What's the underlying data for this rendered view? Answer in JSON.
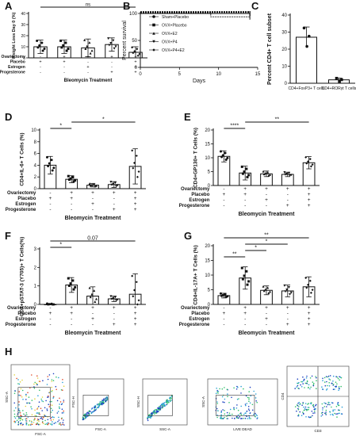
{
  "figure": {
    "panel_letters": [
      "A",
      "B",
      "C",
      "D",
      "E",
      "F",
      "G",
      "H"
    ]
  },
  "chart_data": [
    {
      "panel": "A",
      "type": "bar",
      "ylabel": "Weight Loss Day 0 (%)",
      "ylim": [
        0,
        40
      ],
      "yticks": [
        0,
        10,
        20,
        30,
        40
      ],
      "categories": [
        "1",
        "2",
        "3",
        "4",
        "5"
      ],
      "values": [
        10,
        10,
        9,
        12,
        5
      ],
      "errors": [
        6,
        6,
        8,
        6,
        5
      ],
      "significance": [
        {
          "from": 0,
          "to": 4,
          "label": "ns"
        }
      ],
      "treatment_rows": [
        "Ovariectomy",
        "Placebo",
        "Estrogen",
        "Progesterone"
      ],
      "treatment_matrix": [
        [
          "-",
          "+",
          "+",
          "+",
          "+"
        ],
        [
          "+",
          "+",
          "-",
          "-",
          "+"
        ],
        [
          "-",
          "-",
          "+",
          "-",
          "+"
        ],
        [
          "-",
          "-",
          "-",
          "+",
          "+"
        ]
      ],
      "xlabel": "Bleomycin Treatment"
    },
    {
      "panel": "B",
      "type": "line",
      "xlabel": "Days",
      "ylabel": "Percent survival",
      "xlim": [
        0,
        15
      ],
      "ylim": [
        0,
        100
      ],
      "xticks": [
        0,
        5,
        10,
        15
      ],
      "yticks": [
        0,
        50,
        100
      ],
      "series": [
        {
          "name": "Sham+Placebo",
          "x": [
            0,
            14
          ],
          "y": [
            100,
            100
          ]
        },
        {
          "name": "OVX+Placebo",
          "x": [
            0,
            9,
            9,
            14
          ],
          "y": [
            100,
            100,
            93,
            93
          ]
        },
        {
          "name": "OVX+E2",
          "x": [
            0,
            14
          ],
          "y": [
            100,
            100
          ]
        },
        {
          "name": "OVX+P4",
          "x": [
            0,
            14
          ],
          "y": [
            100,
            100
          ]
        },
        {
          "name": "OVX+P4+E2",
          "x": [
            0,
            14
          ],
          "y": [
            100,
            100
          ]
        }
      ]
    },
    {
      "panel": "C",
      "type": "bar",
      "ylabel": "Percent CD4+ T cell subset",
      "ylim": [
        0,
        40
      ],
      "yticks": [
        0,
        10,
        20,
        30,
        40
      ],
      "categories": [
        "CD4+FoxP3+ T cells",
        "CD4+RORγt T cells"
      ],
      "values": [
        27,
        2
      ],
      "errors": [
        6,
        1
      ]
    },
    {
      "panel": "D",
      "type": "bar",
      "ylabel": "CD4+IL-6+ T Cells (%)",
      "ylim": [
        0,
        10
      ],
      "yticks": [
        0,
        2,
        4,
        6,
        8,
        10
      ],
      "categories": [
        "1",
        "2",
        "3",
        "4",
        "5"
      ],
      "values": [
        4.0,
        1.6,
        0.6,
        0.7,
        3.8
      ],
      "errors": [
        1.5,
        0.6,
        0.3,
        0.5,
        3.0
      ],
      "significance": [
        {
          "from": 0,
          "to": 1,
          "label": "*"
        },
        {
          "from": 1,
          "to": 4,
          "label": "*"
        }
      ],
      "treatment_rows": [
        "Ovariectomy",
        "Placebo",
        "Estrogen",
        "Progesterone"
      ],
      "treatment_matrix": [
        [
          "-",
          "+",
          "+",
          "+",
          "+"
        ],
        [
          "+",
          "+",
          "-",
          "-",
          "+"
        ],
        [
          "-",
          "-",
          "+",
          "-",
          "+"
        ],
        [
          "-",
          "-",
          "-",
          "+",
          "+"
        ]
      ],
      "xlabel": "Bleomycin Treatment"
    },
    {
      "panel": "E",
      "type": "bar",
      "ylabel": "CD4+GP130+ T Cells (%)",
      "ylim": [
        0,
        20
      ],
      "yticks": [
        0,
        5,
        10,
        15,
        20
      ],
      "categories": [
        "1",
        "2",
        "3",
        "4",
        "5"
      ],
      "values": [
        10.5,
        4.5,
        4.2,
        4.0,
        8.2
      ],
      "errors": [
        2.0,
        2.5,
        1.0,
        0.8,
        2.2
      ],
      "significance": [
        {
          "from": 0,
          "to": 1,
          "label": "****"
        },
        {
          "from": 1,
          "to": 4,
          "label": "**"
        }
      ],
      "treatment_rows": [
        "Ovariectomy",
        "Placebo",
        "Estrogen",
        "Progesterone"
      ],
      "treatment_matrix": [
        [
          "-",
          "+",
          "+",
          "+",
          "+"
        ],
        [
          "+",
          "+",
          "-",
          "-",
          "+"
        ],
        [
          "-",
          "-",
          "+",
          "-",
          "+"
        ],
        [
          "-",
          "-",
          "-",
          "+",
          "+"
        ]
      ],
      "xlabel": "Bleomycin Treatment"
    },
    {
      "panel": "F",
      "type": "bar",
      "ylabel": "CD4+pSTAT-3 (Y705)+ T Cells(%)",
      "ylim": [
        0,
        3
      ],
      "yticks": [
        0,
        1,
        2,
        3
      ],
      "categories": [
        "1",
        "2",
        "3",
        "4",
        "5"
      ],
      "values": [
        0.0,
        1.05,
        0.45,
        0.3,
        0.55
      ],
      "errors": [
        0.05,
        0.4,
        0.5,
        0.15,
        1.1
      ],
      "significance": [
        {
          "from": 0,
          "to": 1,
          "label": "*"
        },
        {
          "from": 0,
          "to": 4,
          "label": "0.07"
        }
      ],
      "treatment_rows": [
        "Ovariectomy",
        "Placebo",
        "Estrogen",
        "Progesterone"
      ],
      "treatment_matrix": [
        [
          "-",
          "+",
          "+",
          "+",
          "+"
        ],
        [
          "+",
          "+",
          "-",
          "-",
          "+"
        ],
        [
          "-",
          "-",
          "+",
          "-",
          "+"
        ],
        [
          "-",
          "-",
          "-",
          "+",
          "+"
        ]
      ],
      "xlabel": "Bleomycin Treatment"
    },
    {
      "panel": "G",
      "type": "bar",
      "ylabel": "CD4+IL-17A+ T Cells (%)",
      "ylim": [
        0,
        20
      ],
      "yticks": [
        0,
        5,
        10,
        15,
        20
      ],
      "categories": [
        "1",
        "2",
        "3",
        "4",
        "5"
      ],
      "values": [
        3.0,
        9.0,
        4.8,
        4.6,
        6.0
      ],
      "errors": [
        0.8,
        3.8,
        1.5,
        2.0,
        3.4
      ],
      "significance": [
        {
          "from": 0,
          "to": 1,
          "label": "**"
        },
        {
          "from": 1,
          "to": 2,
          "label": "*"
        },
        {
          "from": 1,
          "to": 3,
          "label": "*"
        },
        {
          "from": 0,
          "to": 4,
          "label": "**"
        }
      ],
      "treatment_rows": [
        "Ovariectomy",
        "Placebo",
        "Estrogen",
        "Progesterone"
      ],
      "treatment_matrix": [
        [
          "-",
          "+",
          "+",
          "+",
          "+"
        ],
        [
          "+",
          "+",
          "-",
          "-",
          "+"
        ],
        [
          "-",
          "-",
          "+",
          "-",
          "+"
        ],
        [
          "-",
          "-",
          "-",
          "+",
          "+"
        ]
      ],
      "xlabel": "Bleomycin Treatment"
    },
    {
      "panel": "H",
      "type": "scatter",
      "plots": [
        {
          "xlabel": "FSC-A",
          "ylabel": "SSC-A"
        },
        {
          "xlabel": "FSC-A",
          "ylabel": "FSC-H"
        },
        {
          "xlabel": "SSC-A",
          "ylabel": "SSC-H"
        },
        {
          "xlabel": "LIVE DEAD",
          "ylabel": "SSC-A"
        },
        {
          "xlabel": "CD3",
          "ylabel": "CD4"
        }
      ]
    }
  ]
}
